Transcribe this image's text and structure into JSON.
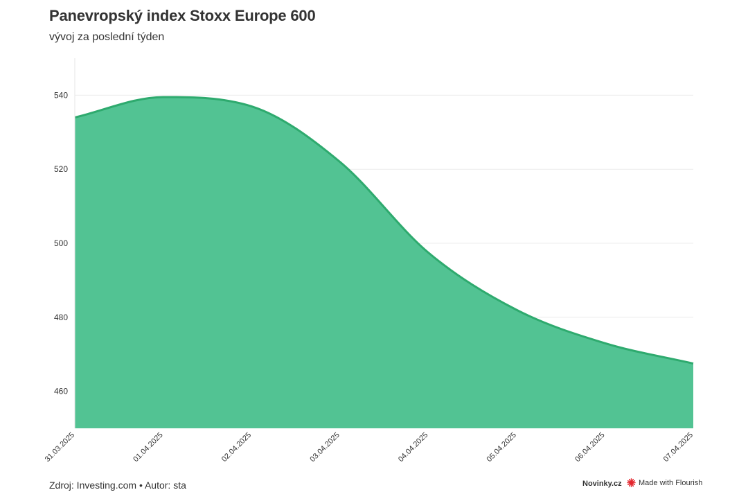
{
  "header": {
    "title": "Panevropský index Stoxx Europe 600",
    "subtitle": "vývoj za poslední týden"
  },
  "footer": {
    "source": "Zdroj: Investing.com • Autor: sta",
    "brand": "Novinky.cz",
    "flourish": "Made with Flourish"
  },
  "colors": {
    "area_fill": "#52c393",
    "line": "#2eaa6e",
    "grid": "#ececec",
    "flourish_icon": "#e3262e"
  },
  "chart_data": {
    "type": "area",
    "x": [
      "31.03.2025",
      "01.04.2025",
      "02.04.2025",
      "03.04.2025",
      "04.04.2025",
      "05.04.2025",
      "06.04.2025",
      "07.04.2025"
    ],
    "series": [
      {
        "values": [
          534,
          539.5,
          537,
          522,
          497.5,
          482,
          473,
          467.5
        ]
      }
    ],
    "ylim": [
      450,
      550
    ],
    "yticks": [
      460,
      480,
      500,
      520,
      540
    ],
    "grid": true,
    "legend": "none"
  }
}
